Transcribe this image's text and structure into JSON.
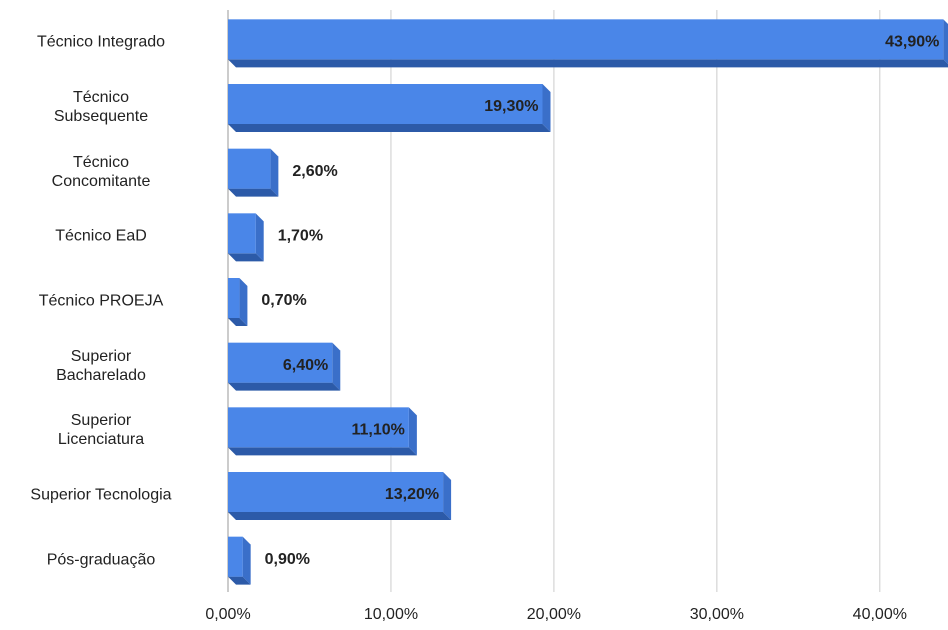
{
  "chart_data": {
    "type": "bar",
    "orientation": "horizontal",
    "categories": [
      "Técnico Integrado",
      "Técnico\nSubsequente",
      "Técnico\nConcomitante",
      "Técnico EaD",
      "Técnico PROEJA",
      "Superior\nBacharelado",
      "Superior\nLicenciatura",
      "Superior Tecnologia",
      "Pós-graduação"
    ],
    "values": [
      43.9,
      19.3,
      2.6,
      1.7,
      0.7,
      6.4,
      11.1,
      13.2,
      0.9
    ],
    "value_labels": [
      "43,90%",
      "19,30%",
      "2,60%",
      "1,70%",
      "0,70%",
      "6,40%",
      "11,10%",
      "13,20%",
      "0,90%"
    ],
    "color": "#4a86e8",
    "xlim": [
      0,
      44
    ],
    "xticks": [
      {
        "value": 0,
        "label": "0,00%"
      },
      {
        "value": 10,
        "label": "10,00%"
      },
      {
        "value": 20,
        "label": "20,00%"
      },
      {
        "value": 30,
        "label": "30,00%"
      },
      {
        "value": 40,
        "label": "40,00%"
      }
    ],
    "grid": true
  }
}
